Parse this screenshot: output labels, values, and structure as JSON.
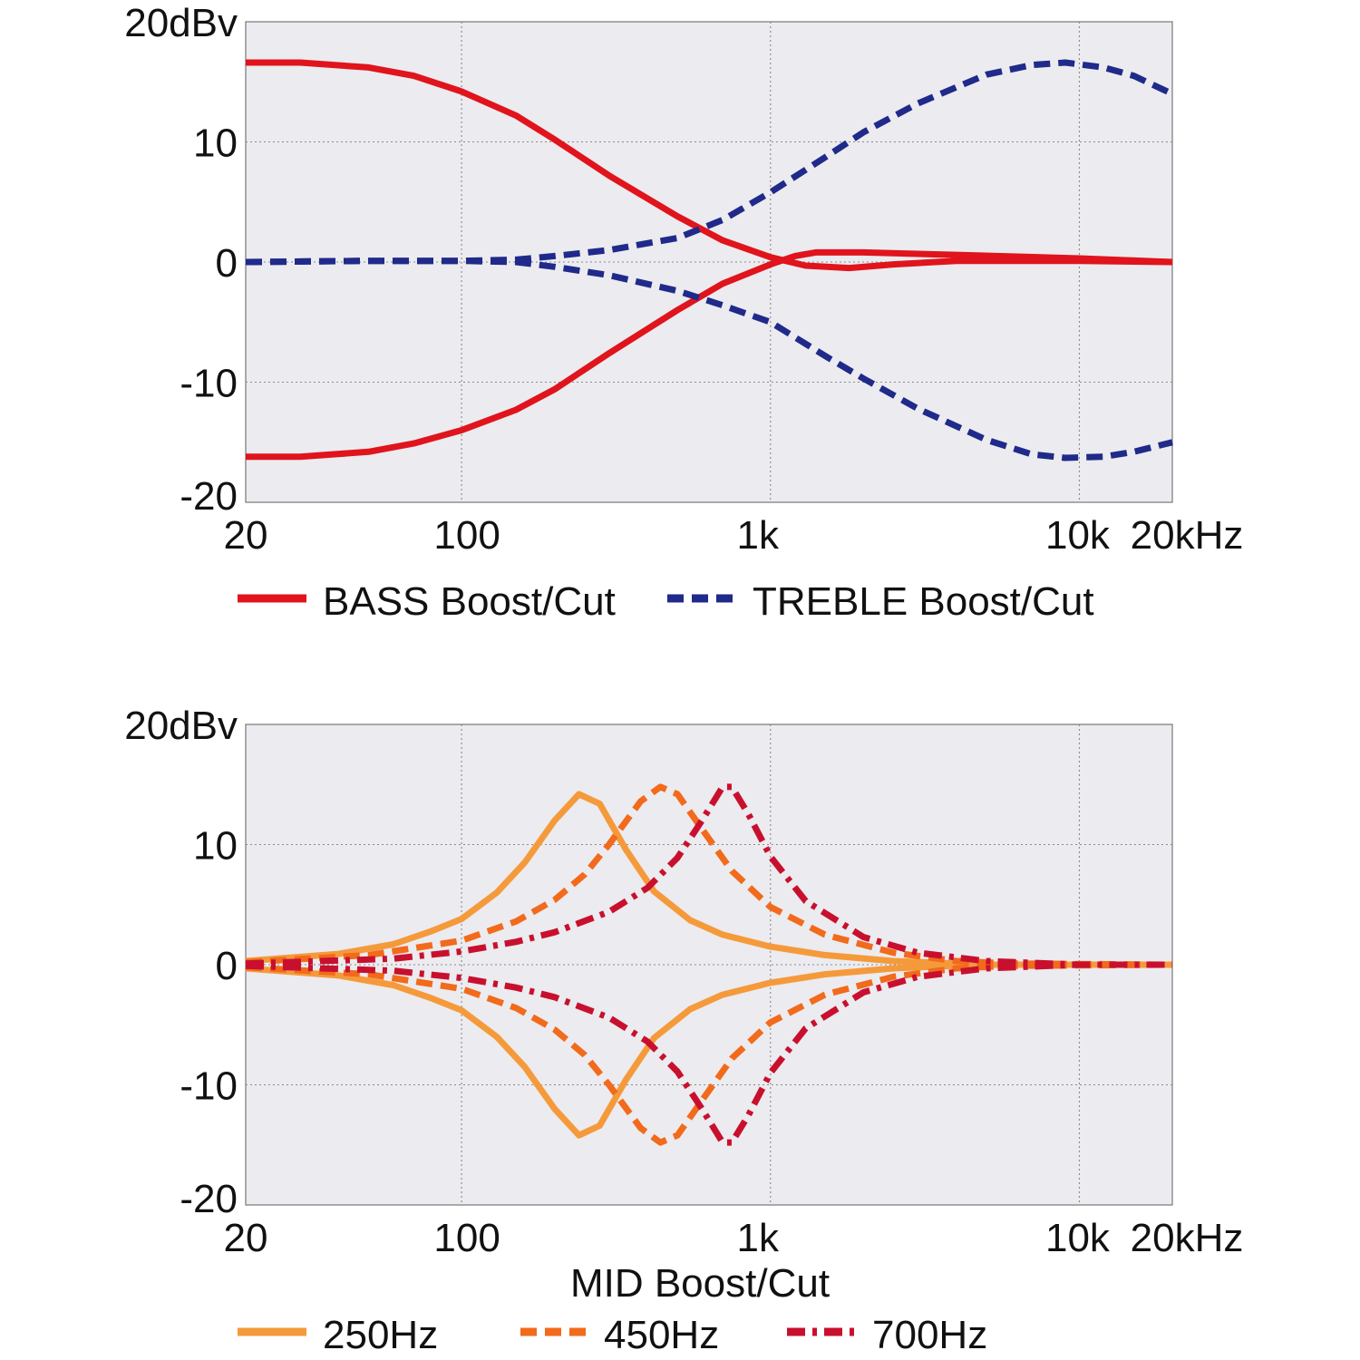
{
  "chart_data": [
    {
      "type": "line",
      "title": "",
      "xlabel": "",
      "ylabel": "",
      "x_scale": "log",
      "xlim": [
        20,
        20000
      ],
      "ylim": [
        -20,
        20
      ],
      "grid": true,
      "y_ticks": [
        {
          "value": 20,
          "label": "20dBv"
        },
        {
          "value": 10,
          "label": "10"
        },
        {
          "value": 0,
          "label": "0"
        },
        {
          "value": -10,
          "label": "-10"
        },
        {
          "value": -20,
          "label": "-20"
        }
      ],
      "x_ticks": [
        {
          "value": 20,
          "label": "20"
        },
        {
          "value": 100,
          "label": "100"
        },
        {
          "value": 1000,
          "label": "1k"
        },
        {
          "value": 10000,
          "label": "10k"
        },
        {
          "value": 20000,
          "label": "20kHz"
        }
      ],
      "legend_position": "bottom",
      "series": [
        {
          "name": "BASS Boost/Cut",
          "legend": true,
          "color": "#e0141c",
          "dash": "solid",
          "points": [
            [
              20,
              16.6
            ],
            [
              30,
              16.6
            ],
            [
              50,
              16.2
            ],
            [
              70,
              15.5
            ],
            [
              100,
              14.2
            ],
            [
              150,
              12.2
            ],
            [
              200,
              10.2
            ],
            [
              300,
              7.2
            ],
            [
              500,
              3.8
            ],
            [
              700,
              1.8
            ],
            [
              1000,
              0.4
            ],
            [
              1300,
              -0.3
            ],
            [
              1800,
              -0.5
            ],
            [
              2500,
              -0.2
            ],
            [
              4000,
              0.1
            ],
            [
              10000,
              0.1
            ],
            [
              20000,
              0.0
            ]
          ]
        },
        {
          "name": "BASS Boost/Cut",
          "legend": false,
          "color": "#e0141c",
          "dash": "solid",
          "points": [
            [
              20,
              -16.2
            ],
            [
              30,
              -16.2
            ],
            [
              50,
              -15.8
            ],
            [
              70,
              -15.1
            ],
            [
              100,
              -14.0
            ],
            [
              150,
              -12.3
            ],
            [
              200,
              -10.6
            ],
            [
              300,
              -7.6
            ],
            [
              500,
              -4.0
            ],
            [
              700,
              -1.8
            ],
            [
              1000,
              -0.2
            ],
            [
              1200,
              0.5
            ],
            [
              1400,
              0.8
            ],
            [
              2000,
              0.8
            ],
            [
              4000,
              0.6
            ],
            [
              10000,
              0.3
            ],
            [
              20000,
              0.0
            ]
          ]
        },
        {
          "name": "TREBLE Boost/Cut",
          "legend": true,
          "color": "#1f2a8a",
          "dash": "long",
          "points": [
            [
              20,
              0.0
            ],
            [
              50,
              0.1
            ],
            [
              100,
              0.1
            ],
            [
              150,
              0.2
            ],
            [
              200,
              0.5
            ],
            [
              300,
              1.0
            ],
            [
              500,
              2.0
            ],
            [
              700,
              3.5
            ],
            [
              1000,
              5.8
            ],
            [
              1500,
              8.7
            ],
            [
              2000,
              10.8
            ],
            [
              3000,
              13.2
            ],
            [
              5000,
              15.6
            ],
            [
              7000,
              16.4
            ],
            [
              9000,
              16.6
            ],
            [
              12000,
              16.2
            ],
            [
              15000,
              15.5
            ],
            [
              20000,
              14.0
            ]
          ]
        },
        {
          "name": "TREBLE Boost/Cut",
          "legend": false,
          "color": "#1f2a8a",
          "dash": "long",
          "points": [
            [
              20,
              0.0
            ],
            [
              50,
              0.1
            ],
            [
              100,
              0.1
            ],
            [
              150,
              0.0
            ],
            [
              200,
              -0.4
            ],
            [
              300,
              -1.1
            ],
            [
              500,
              -2.4
            ],
            [
              700,
              -3.6
            ],
            [
              1000,
              -5.0
            ],
            [
              1500,
              -7.8
            ],
            [
              2000,
              -9.7
            ],
            [
              3000,
              -12.2
            ],
            [
              5000,
              -14.8
            ],
            [
              7000,
              -16.0
            ],
            [
              9000,
              -16.3
            ],
            [
              12000,
              -16.2
            ],
            [
              15000,
              -15.8
            ],
            [
              20000,
              -15.0
            ]
          ]
        }
      ]
    },
    {
      "type": "line",
      "title": "",
      "xlabel": "MID Boost/Cut",
      "ylabel": "",
      "x_scale": "log",
      "xlim": [
        20,
        20000
      ],
      "ylim": [
        -20,
        20
      ],
      "grid": true,
      "y_ticks": [
        {
          "value": 20,
          "label": "20dBv"
        },
        {
          "value": 10,
          "label": "10"
        },
        {
          "value": 0,
          "label": "0"
        },
        {
          "value": -10,
          "label": "-10"
        },
        {
          "value": -20,
          "label": "-20"
        }
      ],
      "x_ticks": [
        {
          "value": 20,
          "label": "20"
        },
        {
          "value": 100,
          "label": "100"
        },
        {
          "value": 1000,
          "label": "1k"
        },
        {
          "value": 10000,
          "label": "10k"
        },
        {
          "value": 20000,
          "label": "20kHz"
        }
      ],
      "legend_position": "bottom",
      "series": [
        {
          "name": "250Hz",
          "legend": true,
          "color": "#f59a3b",
          "dash": "solid",
          "points": [
            [
              20,
              0.3
            ],
            [
              40,
              0.9
            ],
            [
              60,
              1.7
            ],
            [
              80,
              2.8
            ],
            [
              100,
              3.8
            ],
            [
              130,
              6.0
            ],
            [
              160,
              8.5
            ],
            [
              200,
              12.0
            ],
            [
              240,
              14.2
            ],
            [
              280,
              13.4
            ],
            [
              340,
              9.6
            ],
            [
              420,
              6.1
            ],
            [
              550,
              3.7
            ],
            [
              700,
              2.5
            ],
            [
              1000,
              1.5
            ],
            [
              1500,
              0.8
            ],
            [
              2500,
              0.3
            ],
            [
              5000,
              0.0
            ],
            [
              20000,
              0.0
            ]
          ]
        },
        {
          "name": "250Hz",
          "legend": false,
          "color": "#f59a3b",
          "dash": "solid",
          "points": [
            [
              20,
              -0.3
            ],
            [
              40,
              -0.9
            ],
            [
              60,
              -1.7
            ],
            [
              80,
              -2.8
            ],
            [
              100,
              -3.8
            ],
            [
              130,
              -6.0
            ],
            [
              160,
              -8.5
            ],
            [
              200,
              -12.0
            ],
            [
              240,
              -14.2
            ],
            [
              280,
              -13.4
            ],
            [
              340,
              -9.6
            ],
            [
              420,
              -6.1
            ],
            [
              550,
              -3.7
            ],
            [
              700,
              -2.5
            ],
            [
              1000,
              -1.5
            ],
            [
              1500,
              -0.8
            ],
            [
              2500,
              -0.3
            ],
            [
              5000,
              0.0
            ],
            [
              20000,
              0.0
            ]
          ]
        },
        {
          "name": "450Hz",
          "legend": true,
          "color": "#f26a1b",
          "dash": "long",
          "points": [
            [
              20,
              0.2
            ],
            [
              50,
              0.8
            ],
            [
              100,
              2.0
            ],
            [
              150,
              3.6
            ],
            [
              200,
              5.4
            ],
            [
              250,
              7.5
            ],
            [
              300,
              10.0
            ],
            [
              380,
              13.6
            ],
            [
              440,
              14.8
            ],
            [
              500,
              14.2
            ],
            [
              600,
              11.3
            ],
            [
              750,
              7.8
            ],
            [
              1000,
              4.8
            ],
            [
              1500,
              2.5
            ],
            [
              2500,
              1.0
            ],
            [
              4000,
              0.3
            ],
            [
              6000,
              0.1
            ],
            [
              20000,
              0.0
            ]
          ]
        },
        {
          "name": "450Hz",
          "legend": false,
          "color": "#f26a1b",
          "dash": "long",
          "points": [
            [
              20,
              -0.2
            ],
            [
              50,
              -0.8
            ],
            [
              100,
              -2.0
            ],
            [
              150,
              -3.6
            ],
            [
              200,
              -5.4
            ],
            [
              250,
              -7.5
            ],
            [
              300,
              -10.0
            ],
            [
              380,
              -13.6
            ],
            [
              440,
              -14.8
            ],
            [
              500,
              -14.2
            ],
            [
              600,
              -11.3
            ],
            [
              750,
              -7.8
            ],
            [
              1000,
              -4.8
            ],
            [
              1500,
              -2.5
            ],
            [
              2500,
              -1.0
            ],
            [
              4000,
              -0.3
            ],
            [
              6000,
              -0.1
            ],
            [
              20000,
              0.0
            ]
          ]
        },
        {
          "name": "700Hz",
          "legend": true,
          "color": "#c8102e",
          "dash": "dashdot",
          "points": [
            [
              20,
              0.1
            ],
            [
              60,
              0.5
            ],
            [
              100,
              1.1
            ],
            [
              150,
              1.9
            ],
            [
              200,
              2.7
            ],
            [
              300,
              4.4
            ],
            [
              400,
              6.4
            ],
            [
              500,
              8.9
            ],
            [
              600,
              12.0
            ],
            [
              700,
              14.8
            ],
            [
              750,
              14.8
            ],
            [
              850,
              12.5
            ],
            [
              1000,
              9.0
            ],
            [
              1300,
              5.3
            ],
            [
              2000,
              2.3
            ],
            [
              3000,
              1.0
            ],
            [
              5000,
              0.3
            ],
            [
              10000,
              0.0
            ],
            [
              20000,
              0.0
            ]
          ]
        },
        {
          "name": "700Hz",
          "legend": false,
          "color": "#c8102e",
          "dash": "dashdot",
          "points": [
            [
              20,
              -0.1
            ],
            [
              60,
              -0.5
            ],
            [
              100,
              -1.1
            ],
            [
              150,
              -1.9
            ],
            [
              200,
              -2.7
            ],
            [
              300,
              -4.4
            ],
            [
              400,
              -6.4
            ],
            [
              500,
              -8.9
            ],
            [
              600,
              -12.0
            ],
            [
              700,
              -14.8
            ],
            [
              750,
              -14.8
            ],
            [
              850,
              -12.5
            ],
            [
              1000,
              -9.0
            ],
            [
              1300,
              -5.3
            ],
            [
              2000,
              -2.3
            ],
            [
              3000,
              -1.0
            ],
            [
              5000,
              -0.3
            ],
            [
              10000,
              0.0
            ],
            [
              20000,
              0.0
            ]
          ]
        }
      ]
    }
  ]
}
